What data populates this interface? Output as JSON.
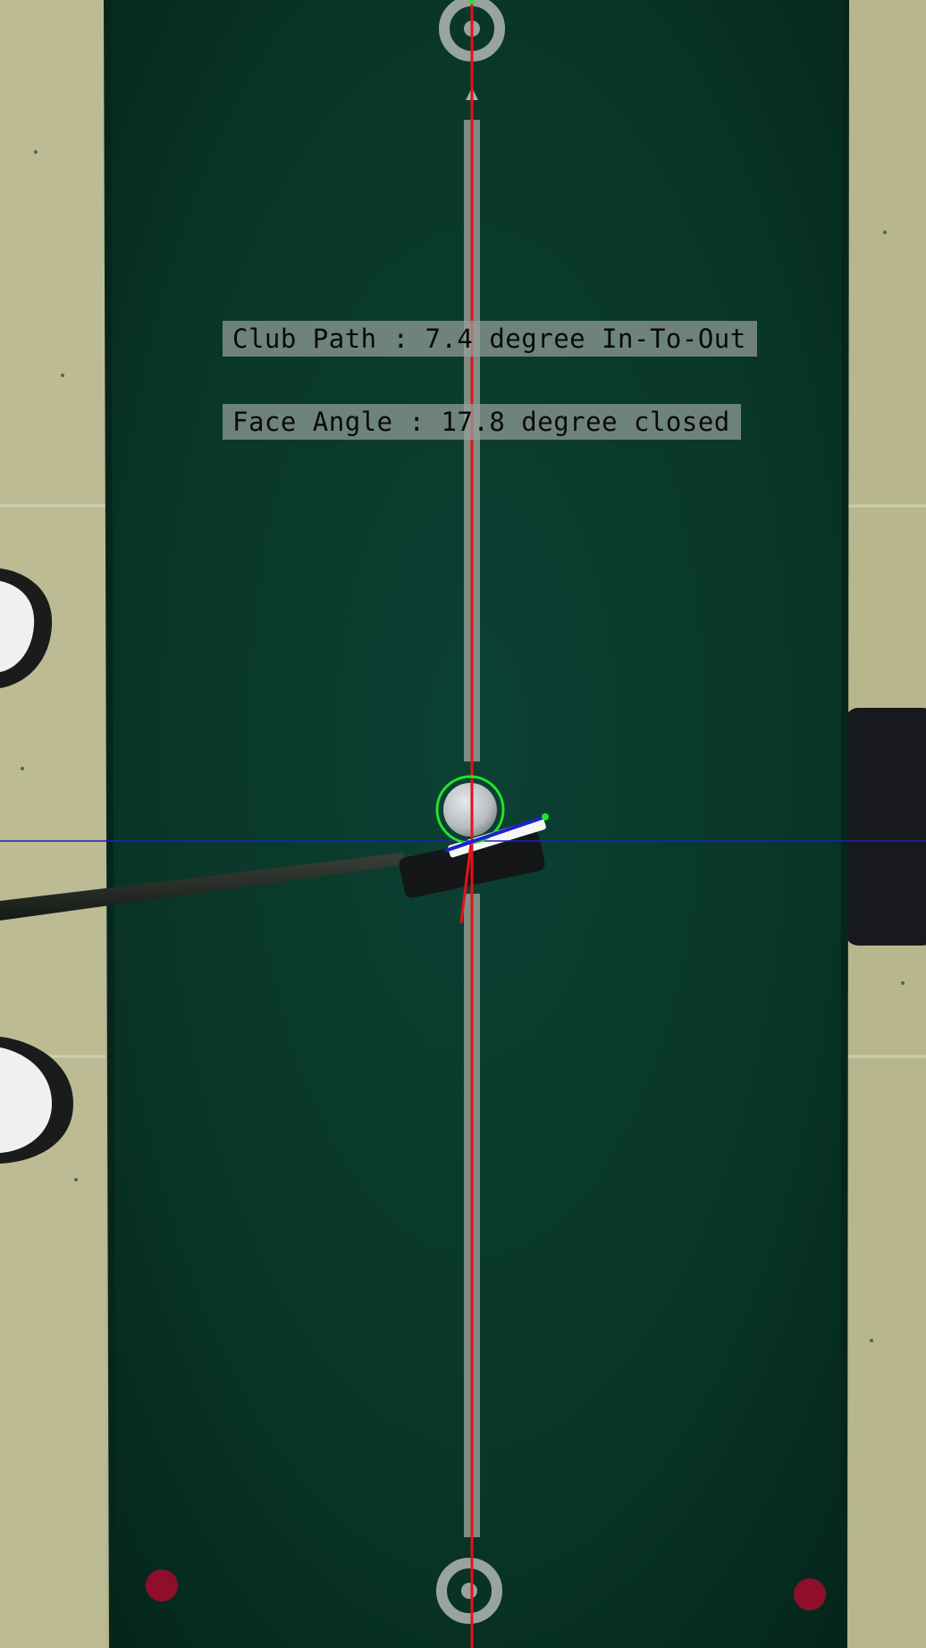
{
  "analysis": {
    "club_path_text": "Club Path : 7.4 degree In-To-Out",
    "face_angle_text": "Face Angle : 17.8 degree closed",
    "club_path_degrees": 7.4,
    "club_path_direction": "In-To-Out",
    "face_angle_degrees": 17.8,
    "face_angle_direction": "closed"
  },
  "colors": {
    "floor": "#b9b88f",
    "mat": "#0b3e30",
    "mat_center_line": "#9aa69e",
    "target_line": "#e8101a",
    "ball_outline": "#22e32a",
    "face_line": "#1f1fd0",
    "horizon_line": "#1a23b8",
    "corner_dots": "#9a1030",
    "label_bg": "#96a098"
  }
}
